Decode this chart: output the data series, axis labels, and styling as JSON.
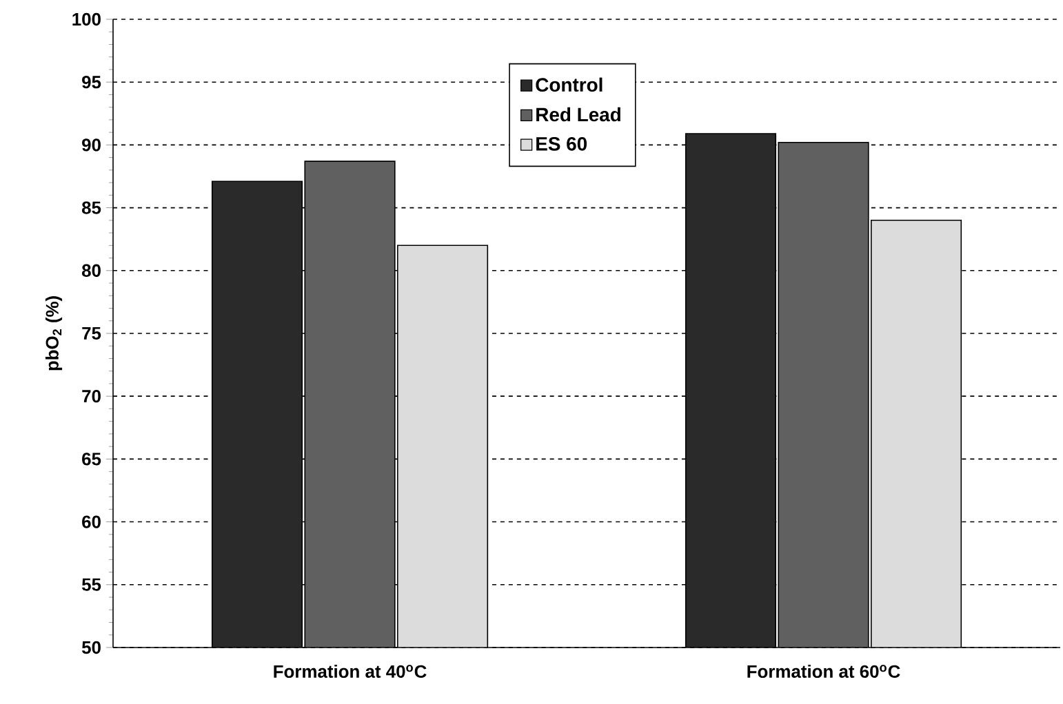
{
  "chart_data": {
    "type": "bar",
    "ylabel": "pbO$_{2}$ (%)",
    "categories": [
      "Formation at 40$^{o}$C",
      "Formation at 60$^{o}$C"
    ],
    "series": [
      {
        "name": "Control",
        "color": "#2a2a2a",
        "values": [
          87.1,
          90.9
        ]
      },
      {
        "name": "Red Lead",
        "color": "#606060",
        "values": [
          88.7,
          90.2
        ]
      },
      {
        "name": "ES 60",
        "color": "#dcdcdc",
        "values": [
          82,
          84
        ]
      }
    ],
    "ylim": [
      50,
      100
    ],
    "yticks": [
      50,
      55,
      60,
      65,
      70,
      75,
      80,
      85,
      90,
      95,
      100
    ],
    "grid": "y",
    "legend": "top"
  }
}
